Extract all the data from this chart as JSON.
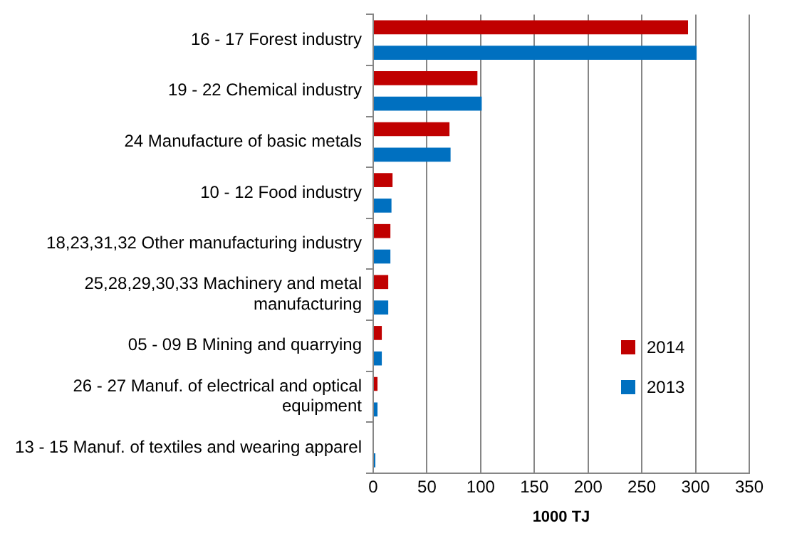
{
  "chart_data": {
    "type": "bar",
    "orientation": "horizontal",
    "categories": [
      "16 - 17 Forest industry",
      "19 - 22 Chemical industry",
      "24 Manufacture of basic metals",
      "10 - 12 Food industry",
      "18,23,31,32 Other manufacturing industry",
      "25,28,29,30,33 Machinery and metal manufacturing",
      "05 - 09 B Mining and quarrying",
      "26 - 27 Manuf. of electrical and optical equipment",
      "13 - 15 Manuf. of textiles and wearing apparel"
    ],
    "series": [
      {
        "name": "2014",
        "color": "#c00000",
        "values": [
          293,
          97,
          71,
          18,
          16,
          14,
          8,
          4,
          null
        ]
      },
      {
        "name": "2013",
        "color": "#0070c0",
        "values": [
          301,
          101,
          72,
          17,
          16,
          14,
          8,
          4,
          2
        ]
      }
    ],
    "xlabel": "1000 TJ",
    "xlim": [
      0,
      350
    ],
    "xticks": [
      0,
      50,
      100,
      150,
      200,
      250,
      300,
      350
    ],
    "grid": "x",
    "legend": "bottom right"
  }
}
